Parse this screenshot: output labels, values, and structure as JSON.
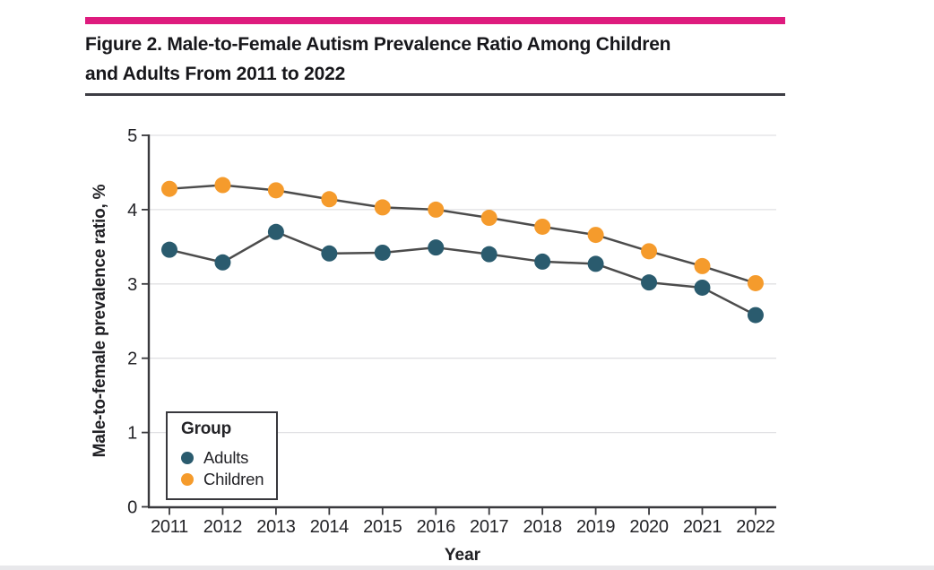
{
  "figure": {
    "title_line1": "Figure 2. Male-to-Female Autism Prevalence Ratio Among Children",
    "title_line2": "and Adults From 2011 to 2022"
  },
  "legend": {
    "title": "Group",
    "items": [
      {
        "label": "Adults",
        "color": "#2A5B6E"
      },
      {
        "label": "Children",
        "color": "#F59B2C"
      }
    ]
  },
  "chart_data": {
    "type": "line",
    "title": "Male-to-Female Autism Prevalence Ratio Among Children and Adults From 2011 to 2022",
    "xlabel": "Year",
    "ylabel": "Male-to-female prevalence ratio, %",
    "categories": [
      "2011",
      "2012",
      "2013",
      "2014",
      "2015",
      "2016",
      "2017",
      "2018",
      "2019",
      "2020",
      "2021",
      "2022"
    ],
    "series": [
      {
        "name": "Adults",
        "color": "#2A5B6E",
        "values": [
          3.46,
          3.29,
          3.7,
          3.41,
          3.42,
          3.49,
          3.4,
          3.3,
          3.27,
          3.02,
          2.95,
          2.58
        ]
      },
      {
        "name": "Children",
        "color": "#F59B2C",
        "values": [
          4.28,
          4.33,
          4.26,
          4.14,
          4.03,
          4.0,
          3.89,
          3.77,
          3.66,
          3.44,
          3.24,
          3.01
        ]
      }
    ],
    "ylim": [
      0,
      5
    ],
    "y_ticks": [
      0,
      1,
      2,
      3,
      4,
      5
    ],
    "grid": true,
    "legend_position": "lower-left-inside",
    "marker": "circle",
    "line_color": "#4C4C4C"
  },
  "colors": {
    "accent_bar": "#DE1B7E",
    "adults": "#2A5B6E",
    "children": "#F59B2C",
    "series_line": "#4C4C4C"
  }
}
